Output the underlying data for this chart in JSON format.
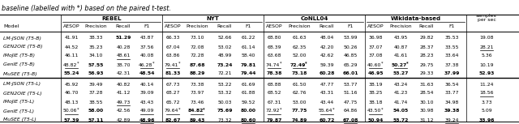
{
  "title_text": "baseline (labelled with *) based on the paired t-test.",
  "rows_top": [
    {
      "model": "LM-JSON (T5-B)",
      "data": [
        "41.91",
        "38.33",
        "51.29",
        "43.87",
        "66.33",
        "73.10",
        "52.66",
        "61.22",
        "68.80",
        "61.63",
        "48.04",
        "53.99",
        "36.98",
        "43.95",
        "29.82",
        "35.53",
        "19.08"
      ],
      "bold": [
        2
      ],
      "underline": [],
      "ul_last": false
    },
    {
      "model": "GEN2OIE (T5-B)",
      "data": [
        "44.52",
        "35.23",
        "40.28",
        "37.56",
        "67.04",
        "72.08",
        "53.02",
        "61.14",
        "68.39",
        "62.35",
        "42.20",
        "50.26",
        "37.07",
        "40.87",
        "28.37",
        "33.55",
        "28.21"
      ],
      "bold": [],
      "underline": [],
      "ul_last": true
    },
    {
      "model": "IMoJIE (T5-B)",
      "data": [
        "46.11",
        "34.10",
        "48.61",
        "40.08",
        "63.86",
        "72.28",
        "48.99",
        "58.40",
        "63.68",
        "52.00",
        "42.62",
        "46.85",
        "37.08",
        "41.61",
        "28.23",
        "33.64",
        "5.36"
      ],
      "bold": [],
      "underline": [
        2
      ],
      "ul_last": false
    },
    {
      "model": "GenIE (T5-B)",
      "data": [
        "48.82*",
        "57.55",
        "38.70",
        "46.28*",
        "79.41*",
        "87.68",
        "73.24",
        "79.81",
        "74.74*",
        "72.49*",
        "59.39",
        "65.29",
        "40.60*",
        "50.27*",
        "29.75",
        "37.38",
        "10.19"
      ],
      "bold": [
        1,
        5,
        6,
        7,
        9,
        13
      ],
      "underline": [
        0,
        3,
        4,
        8,
        9,
        12,
        13
      ],
      "ul_last": false
    },
    {
      "model": "MuSEE (T5-B)",
      "data": [
        "55.24",
        "56.93",
        "42.31",
        "48.54",
        "81.33",
        "88.29",
        "72.21",
        "79.44",
        "78.38",
        "73.18",
        "60.28",
        "66.01",
        "46.95",
        "53.27",
        "29.33",
        "37.99",
        "52.93"
      ],
      "bold": [
        0,
        1,
        3,
        4,
        5,
        7,
        8,
        9,
        10,
        11,
        12,
        13,
        15,
        16
      ],
      "underline": [],
      "ul_last": false
    }
  ],
  "rows_bot": [
    {
      "model": "LM-JSON (T5-L)",
      "data": [
        "45.92",
        "39.49",
        "40.82",
        "40.14",
        "67.73",
        "73.38",
        "53.22",
        "61.69",
        "68.88",
        "61.50",
        "47.77",
        "53.77",
        "38.19",
        "43.24",
        "31.63",
        "36.54",
        "11.24"
      ],
      "bold": [],
      "underline": [],
      "ul_last": false
    },
    {
      "model": "GEN2OIE (T5-L)",
      "data": [
        "46.70",
        "37.28",
        "41.12",
        "39.09",
        "68.27",
        "73.97",
        "53.32",
        "61.88",
        "68.52",
        "62.76",
        "43.31",
        "51.16",
        "38.25",
        "41.23",
        "28.54",
        "33.77",
        "18.56"
      ],
      "bold": [],
      "underline": [],
      "ul_last": true
    },
    {
      "model": "IMoJIE (T5-L)",
      "data": [
        "48.13",
        "38.55",
        "49.73",
        "43.43",
        "65.72",
        "73.46",
        "50.03",
        "59.52",
        "67.31",
        "53.00",
        "43.44",
        "47.75",
        "38.18",
        "41.74",
        "30.10",
        "34.98",
        "3.73"
      ],
      "bold": [],
      "underline": [
        2
      ],
      "ul_last": false
    },
    {
      "model": "GenIE (T5-L)",
      "data": [
        "50.06*",
        "58.00",
        "42.56",
        "49.09",
        "79.64*",
        "84.82*",
        "75.69",
        "80.00",
        "72.92*",
        "77.75",
        "55.64*",
        "64.86",
        "43.50*",
        "54.05",
        "30.98",
        "39.38",
        "5.09"
      ],
      "bold": [
        1,
        5,
        6,
        7,
        9,
        13,
        15
      ],
      "underline": [
        0,
        3,
        4,
        5,
        8,
        10,
        12
      ],
      "ul_last": false
    },
    {
      "model": "MuSEE (T5-L)",
      "data": [
        "57.39",
        "57.11",
        "42.89",
        "48.96",
        "82.67",
        "89.43",
        "73.32",
        "80.60",
        "79.87",
        "74.89",
        "60.72",
        "67.08",
        "50.94",
        "53.72",
        "31.12",
        "39.24",
        "33.96"
      ],
      "bold": [
        0,
        1,
        3,
        4,
        5,
        7,
        8,
        9,
        10,
        11,
        12,
        13,
        16
      ],
      "underline": [
        3,
        7,
        11,
        15
      ],
      "ul_last": false
    }
  ]
}
